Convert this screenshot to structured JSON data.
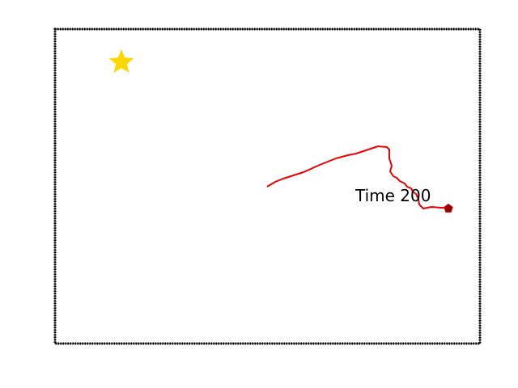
{
  "annotation": "Time 200"
}
